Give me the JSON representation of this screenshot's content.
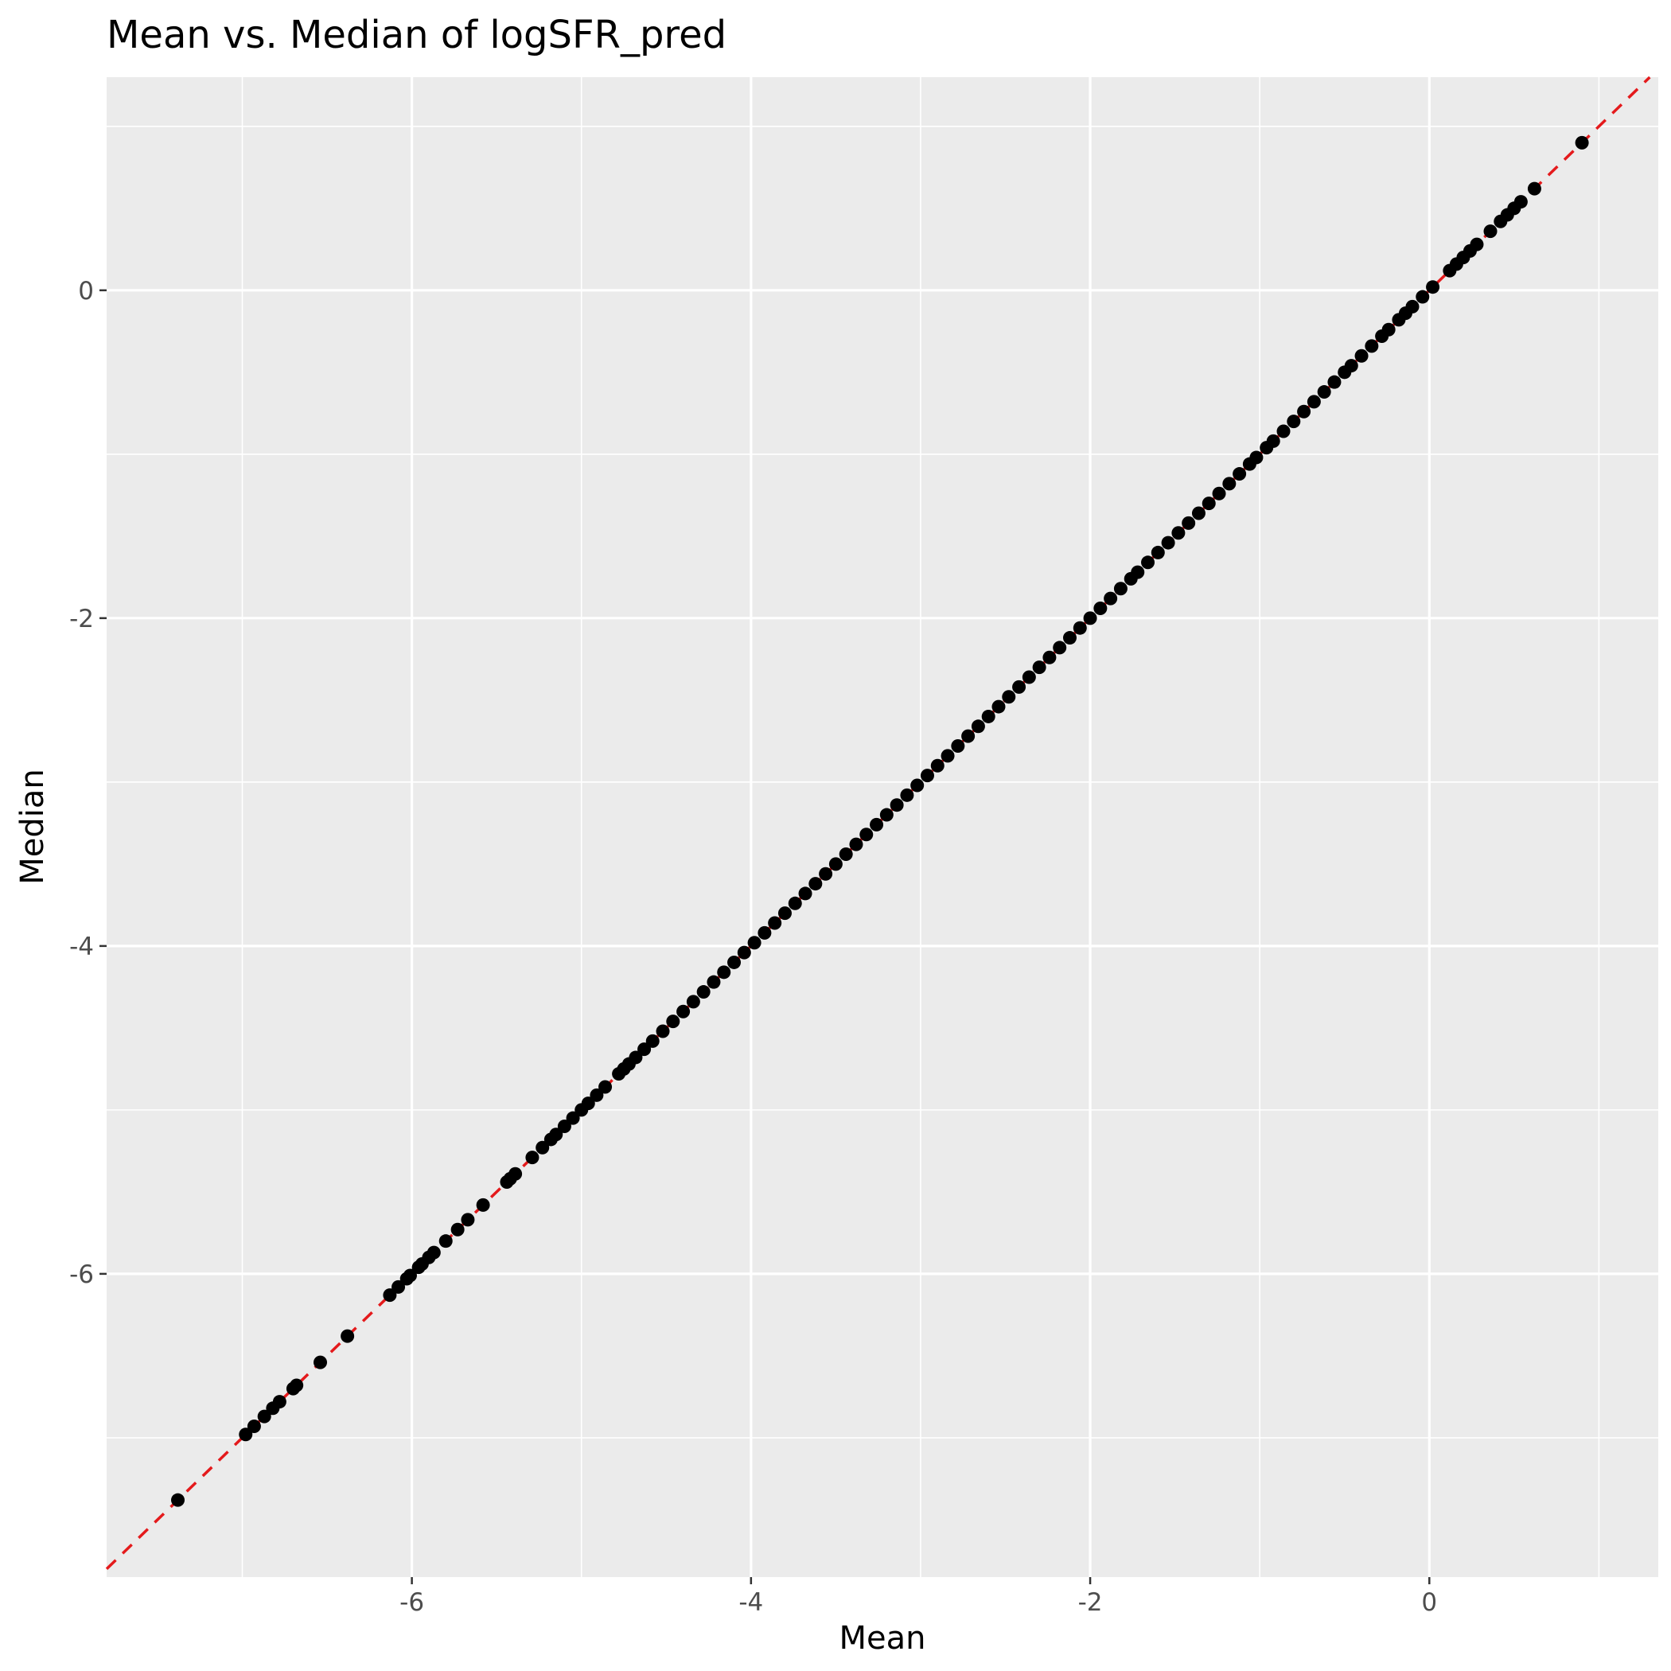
{
  "chart_data": {
    "type": "scatter",
    "title": "Mean vs. Median of logSFR_pred",
    "xlabel": "Mean",
    "ylabel": "Median",
    "xlim": [
      -7.8,
      1.35
    ],
    "ylim": [
      -7.85,
      1.3
    ],
    "x_ticks": [
      -6,
      -4,
      -2,
      0
    ],
    "x_tick_labels": [
      "-6",
      "-4",
      "-2",
      "0"
    ],
    "y_ticks": [
      -6,
      -4,
      -2,
      0
    ],
    "y_tick_labels": [
      "-6",
      "-4",
      "-2",
      "0"
    ],
    "grid": true,
    "legend": "none",
    "colors": {
      "panel_background": "#ebebeb",
      "grid": "#ffffff",
      "points": "#000000",
      "reference_line": "#e41a1c"
    },
    "reference_line": {
      "type": "y=x",
      "style": "dashed"
    },
    "x": [
      -7.38,
      -6.98,
      -6.93,
      -6.87,
      -6.82,
      -6.78,
      -6.7,
      -6.68,
      -6.54,
      -6.38,
      -6.13,
      -6.08,
      -6.03,
      -6.01,
      -5.96,
      -5.94,
      -5.9,
      -5.87,
      -5.8,
      -5.73,
      -5.67,
      -5.58,
      -5.44,
      -5.42,
      -5.39,
      -5.29,
      -5.23,
      -5.18,
      -5.15,
      -5.1,
      -5.05,
      -5.0,
      -4.96,
      -4.91,
      -4.86,
      -4.78,
      -4.75,
      -4.72,
      -4.68,
      -4.63,
      -4.58,
      -4.52,
      -4.46,
      -4.4,
      -4.34,
      -4.28,
      -4.22,
      -4.16,
      -4.1,
      -4.04,
      -3.98,
      -3.92,
      -3.86,
      -3.8,
      -3.74,
      -3.68,
      -3.62,
      -3.56,
      -3.5,
      -3.44,
      -3.38,
      -3.32,
      -3.26,
      -3.2,
      -3.14,
      -3.08,
      -3.02,
      -2.96,
      -2.9,
      -2.84,
      -2.78,
      -2.72,
      -2.66,
      -2.6,
      -2.54,
      -2.48,
      -2.42,
      -2.36,
      -2.3,
      -2.24,
      -2.18,
      -2.12,
      -2.06,
      -2.0,
      -1.94,
      -1.88,
      -1.82,
      -1.76,
      -1.72,
      -1.66,
      -1.6,
      -1.54,
      -1.48,
      -1.42,
      -1.36,
      -1.3,
      -1.24,
      -1.18,
      -1.12,
      -1.06,
      -1.02,
      -0.96,
      -0.92,
      -0.86,
      -0.8,
      -0.74,
      -0.68,
      -0.62,
      -0.56,
      -0.5,
      -0.46,
      -0.4,
      -0.34,
      -0.28,
      -0.24,
      -0.18,
      -0.14,
      -0.1,
      -0.04,
      0.02,
      0.12,
      0.16,
      0.2,
      0.24,
      0.28,
      0.36,
      0.42,
      0.46,
      0.5,
      0.54,
      0.62,
      0.9
    ],
    "y": [
      -7.38,
      -6.98,
      -6.93,
      -6.87,
      -6.82,
      -6.78,
      -6.7,
      -6.68,
      -6.54,
      -6.38,
      -6.13,
      -6.08,
      -6.03,
      -6.01,
      -5.96,
      -5.94,
      -5.9,
      -5.87,
      -5.8,
      -5.73,
      -5.67,
      -5.58,
      -5.44,
      -5.42,
      -5.39,
      -5.29,
      -5.23,
      -5.18,
      -5.15,
      -5.1,
      -5.05,
      -5.0,
      -4.96,
      -4.91,
      -4.86,
      -4.78,
      -4.75,
      -4.72,
      -4.68,
      -4.63,
      -4.58,
      -4.52,
      -4.46,
      -4.4,
      -4.34,
      -4.28,
      -4.22,
      -4.16,
      -4.1,
      -4.04,
      -3.98,
      -3.92,
      -3.86,
      -3.8,
      -3.74,
      -3.68,
      -3.62,
      -3.56,
      -3.5,
      -3.44,
      -3.38,
      -3.32,
      -3.26,
      -3.2,
      -3.14,
      -3.08,
      -3.02,
      -2.96,
      -2.9,
      -2.84,
      -2.78,
      -2.72,
      -2.66,
      -2.6,
      -2.54,
      -2.48,
      -2.42,
      -2.36,
      -2.3,
      -2.24,
      -2.18,
      -2.12,
      -2.06,
      -2.0,
      -1.94,
      -1.88,
      -1.82,
      -1.76,
      -1.72,
      -1.66,
      -1.6,
      -1.54,
      -1.48,
      -1.42,
      -1.36,
      -1.3,
      -1.24,
      -1.18,
      -1.12,
      -1.06,
      -1.02,
      -0.96,
      -0.92,
      -0.86,
      -0.8,
      -0.74,
      -0.68,
      -0.62,
      -0.56,
      -0.5,
      -0.46,
      -0.4,
      -0.34,
      -0.28,
      -0.24,
      -0.18,
      -0.14,
      -0.1,
      -0.04,
      0.02,
      0.12,
      0.16,
      0.2,
      0.24,
      0.28,
      0.36,
      0.42,
      0.46,
      0.5,
      0.54,
      0.62,
      0.9
    ]
  }
}
